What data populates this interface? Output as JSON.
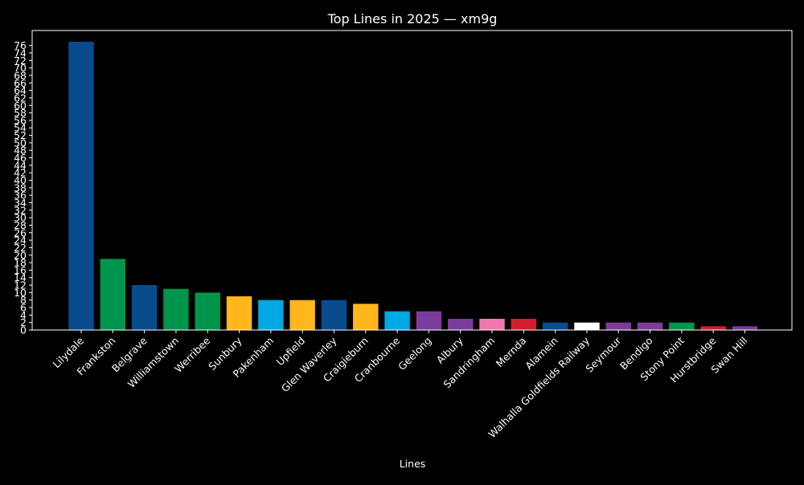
{
  "chart_data": {
    "type": "bar",
    "title": "Top Lines in 2025 — xm9g",
    "xlabel": "Lines",
    "ylabel": "",
    "ylim": [
      0,
      80
    ],
    "ytick_step": 2,
    "ytick_max": 76,
    "grid": false,
    "legend": "none",
    "categories": [
      "Lilydale",
      "Frankston",
      "Belgrave",
      "Williamstown",
      "Werribee",
      "Sunbury",
      "Pakenham",
      "Upfield",
      "Glen Waverley",
      "Craigieburn",
      "Cranbourne",
      "Geelong",
      "Albury",
      "Sandringham",
      "Mernda",
      "Alamein",
      "Walhalla Goldfields Railway",
      "Seymour",
      "Bendigo",
      "Stony Point",
      "Hurstbridge",
      "Swan Hill"
    ],
    "values": [
      77,
      19,
      12,
      11,
      10,
      9,
      8,
      8,
      8,
      7,
      5,
      5,
      3,
      3,
      3,
      2,
      2,
      2,
      2,
      2,
      1,
      1
    ],
    "colors": [
      "#094c8d",
      "#00954c",
      "#094c8d",
      "#00954c",
      "#00954c",
      "#ffb71b",
      "#00a8e4",
      "#ffb71b",
      "#094c8d",
      "#ffb71b",
      "#00a8e4",
      "#7c3c9c",
      "#7c3c9c",
      "#f178af",
      "#d11f2f",
      "#094c8d",
      "#ffffff",
      "#7c3c9c",
      "#7c3c9c",
      "#00954c",
      "#d11f2f",
      "#7c3c9c"
    ]
  }
}
